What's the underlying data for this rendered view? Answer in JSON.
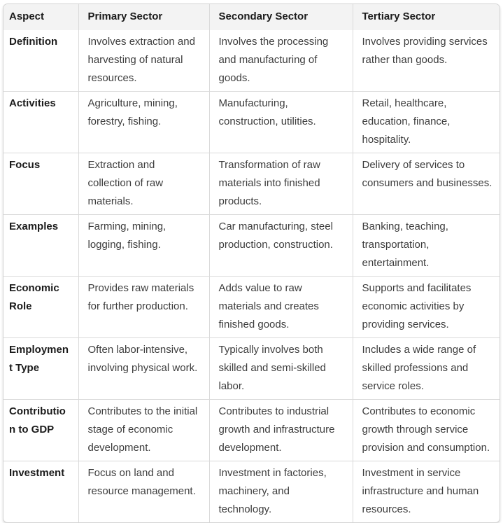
{
  "table": {
    "columns": [
      "Aspect",
      "Primary Sector",
      "Secondary Sector",
      "Tertiary Sector"
    ],
    "rows": [
      {
        "aspect": "Definition",
        "primary": "Involves extraction and harvesting of natural resources.",
        "secondary": "Involves the processing and manufacturing of goods.",
        "tertiary": "Involves providing services rather than goods."
      },
      {
        "aspect": "Activities",
        "primary": "Agriculture, mining, forestry, fishing.",
        "secondary": "Manufacturing, construction, utilities.",
        "tertiary": "Retail, healthcare, education, finance, hospitality."
      },
      {
        "aspect": "Focus",
        "primary": "Extraction and collection of raw materials.",
        "secondary": "Transformation of raw materials into finished products.",
        "tertiary": "Delivery of services to consumers and businesses."
      },
      {
        "aspect": "Examples",
        "primary": "Farming, mining, logging, fishing.",
        "secondary": "Car manufacturing, steel production, construction.",
        "tertiary": "Banking, teaching, transportation, entertainment."
      },
      {
        "aspect": "Economic Role",
        "primary": "Provides raw materials for further production.",
        "secondary": "Adds value to raw materials and creates finished goods.",
        "tertiary": "Supports and facilitates economic activities by providing services."
      },
      {
        "aspect": "Employment Type",
        "primary": "Often labor-intensive, involving physical work.",
        "secondary": "Typically involves both skilled and semi-skilled labor.",
        "tertiary": "Includes a wide range of skilled professions and service roles."
      },
      {
        "aspect": "Contribution to GDP",
        "primary": "Contributes to the initial stage of economic development.",
        "secondary": "Contributes to industrial growth and infrastructure development.",
        "tertiary": "Contributes to economic growth through service provision and consumption."
      },
      {
        "aspect": "Investment",
        "primary": "Focus on land and resource management.",
        "secondary": "Investment in factories, machinery, and technology.",
        "tertiary": "Investment in service infrastructure and human resources."
      }
    ],
    "colors": {
      "header_bg": "#f3f3f3",
      "cell_border": "#dadada",
      "outer_border": "#d4d4d4",
      "header_text": "#1b1b1b",
      "body_text": "#3d3d3d"
    }
  }
}
